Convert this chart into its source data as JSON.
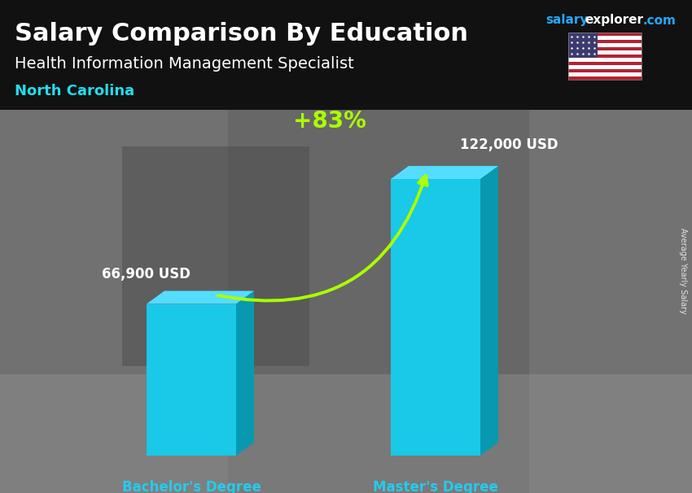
{
  "title": "Salary Comparison By Education",
  "subtitle": "Health Information Management Specialist",
  "location": "North Carolina",
  "categories": [
    "Bachelor's Degree",
    "Master's Degree"
  ],
  "values": [
    66900,
    122000
  ],
  "value_labels": [
    "66,900 USD",
    "122,000 USD"
  ],
  "bar_color_front": "#1AC8E8",
  "bar_color_side": "#0899B0",
  "bar_color_top": "#55DDFF",
  "pct_change": "+83%",
  "pct_color": "#AAFF00",
  "xlabel_color": "#22CCEE",
  "title_color": "#FFFFFF",
  "subtitle_color": "#FFFFFF",
  "value_color": "#FFFFFF",
  "location_color": "#22DDEE",
  "brand_salary_color": "#22AAFF",
  "brand_explorer_color": "#FFFFFF",
  "brand_com_color": "#22AAFF",
  "side_label": "Average Yearly Salary",
  "bg_top_color": "#2A2A2A",
  "bg_bottom_color": "#888888",
  "title_bg_alpha": 0.6
}
